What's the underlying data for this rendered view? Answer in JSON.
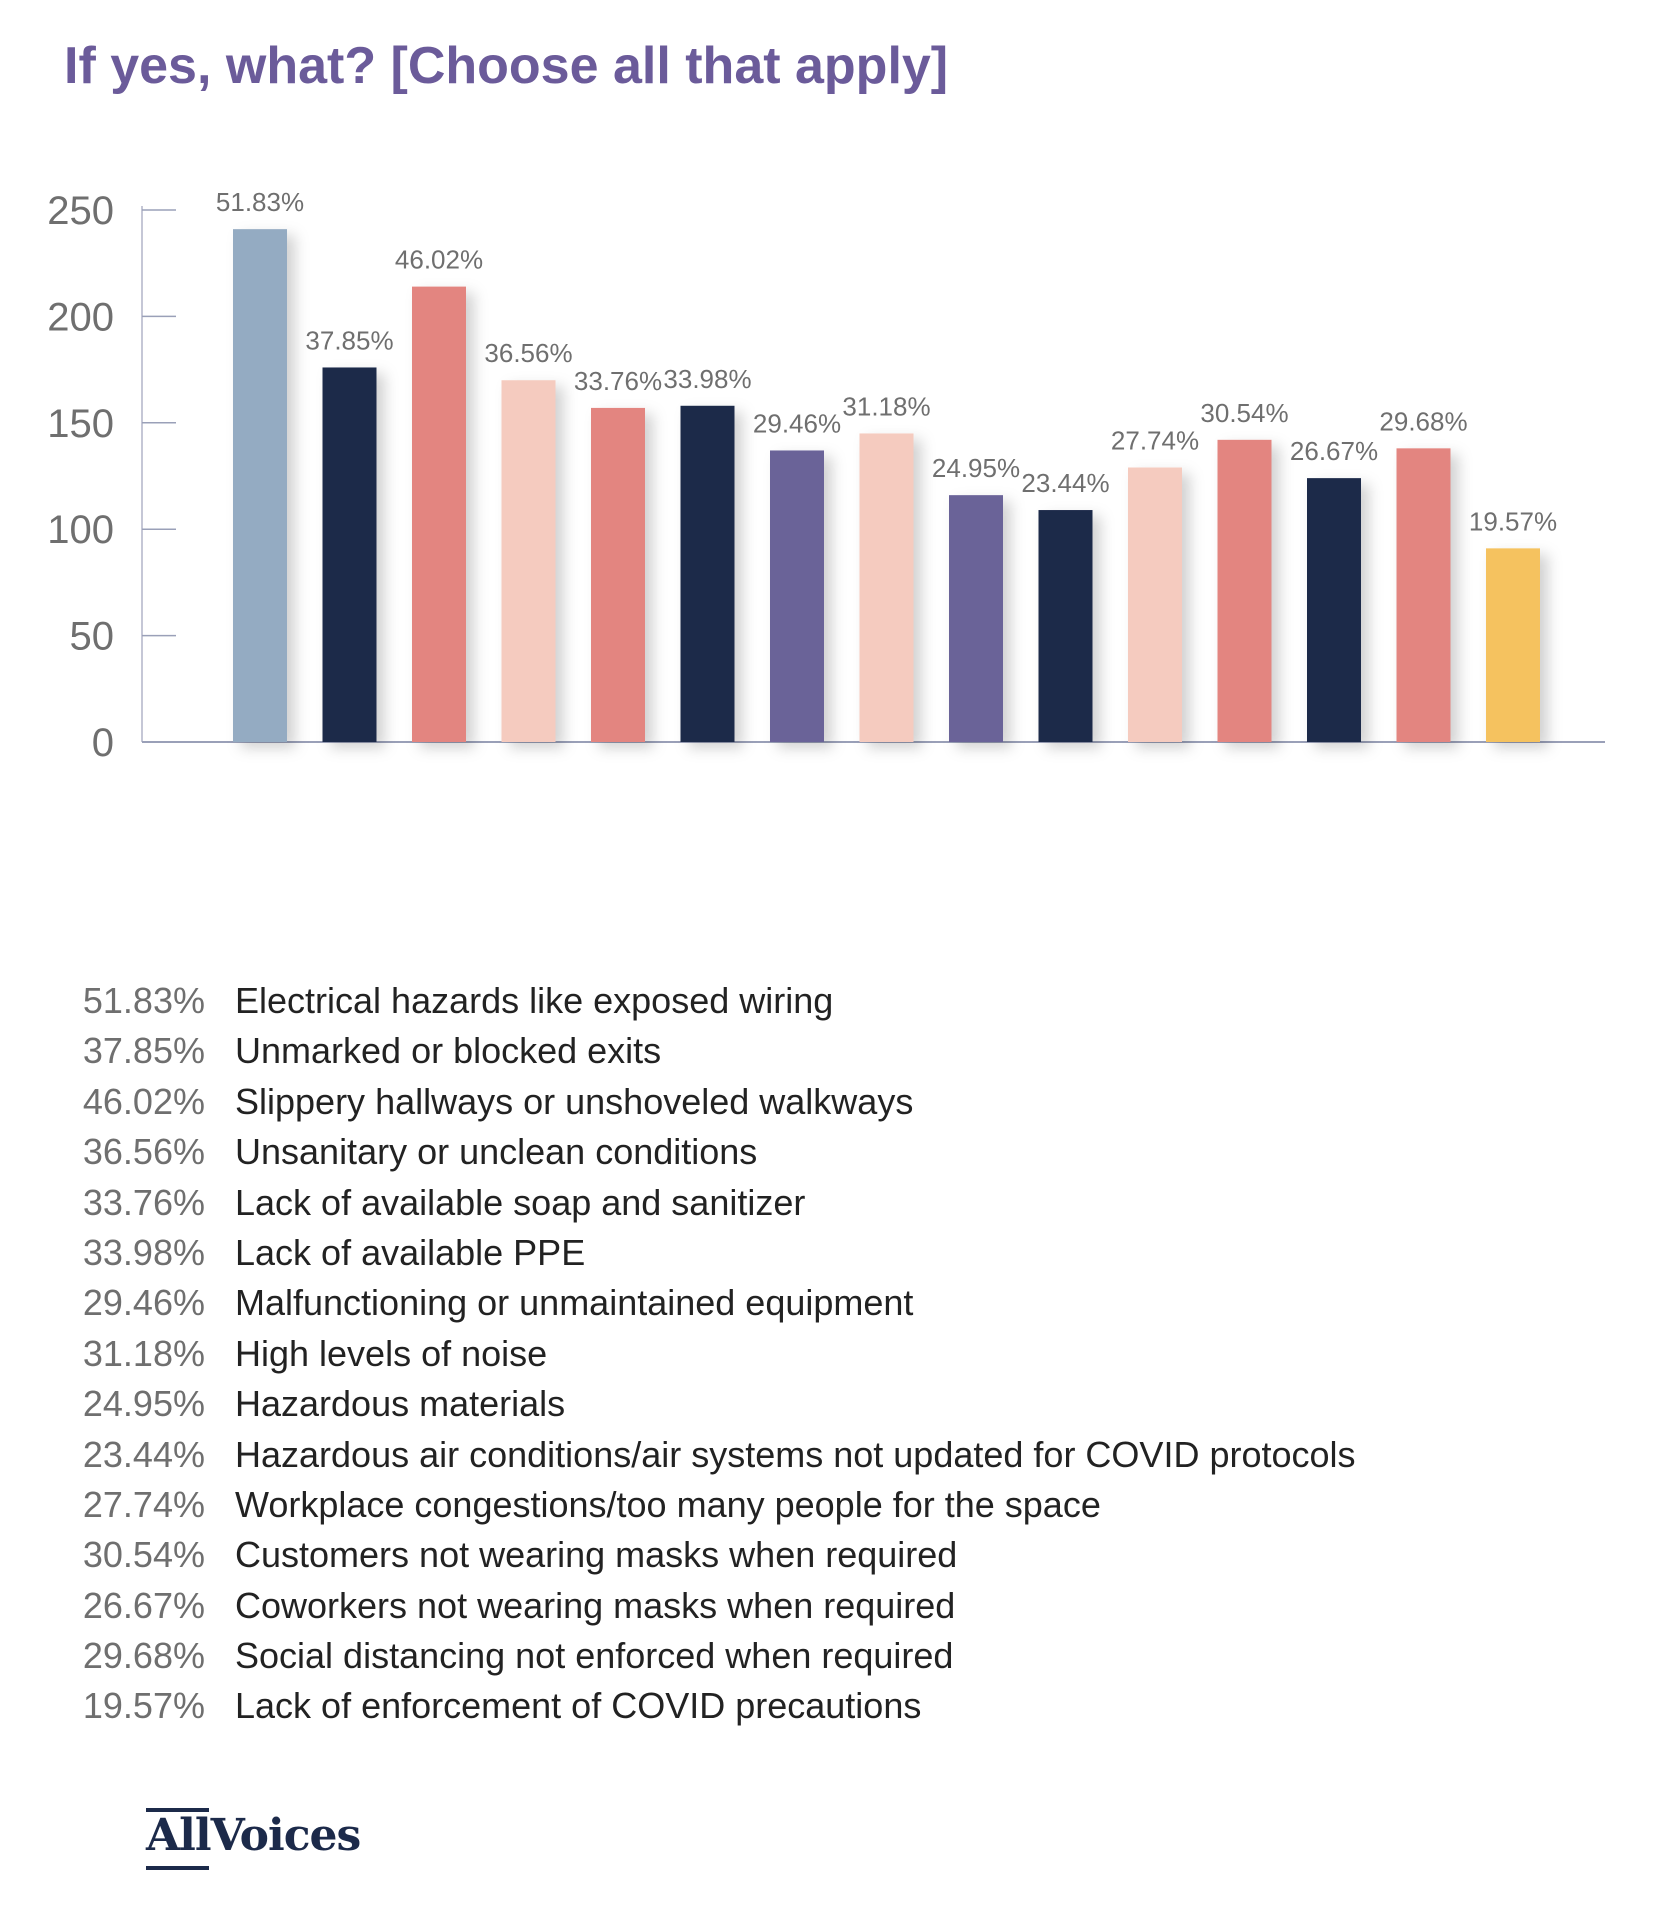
{
  "title": "If yes, what? [Choose all that apply]",
  "chart_data": {
    "type": "bar",
    "title": "If yes, what? [Choose all that apply]",
    "ylim": [
      0,
      250
    ],
    "yticks": [
      "0",
      "50",
      "100",
      "150",
      "200",
      "250"
    ],
    "grid": false,
    "categories": [
      "Electrical hazards like exposed wiring",
      "Unmarked or blocked exits",
      "Slippery hallways or unshoveled walkways",
      "Unsanitary or unclean conditions",
      "Lack of available soap and sanitizer",
      "Lack of available PPE",
      "Malfunctioning or unmaintained equipment",
      "High levels of noise",
      "Hazardous materials",
      "Hazardous air conditions/air systems not updated for COVID protocols",
      "Workplace congestions/too many people for the space",
      "Customers not wearing masks when required",
      "Coworkers not wearing masks when required",
      "Social distancing not enforced when required",
      "Lack of enforcement of COVID precautions"
    ],
    "values": [
      241,
      176,
      214,
      170,
      157,
      158,
      137,
      145,
      116,
      109,
      129,
      142,
      124,
      138,
      91
    ],
    "data_labels": [
      "51.83%",
      "37.85%",
      "46.02%",
      "36.56%",
      "33.76%",
      "33.98%",
      "29.46%",
      "31.18%",
      "24.95%",
      "23.44%",
      "27.74%",
      "30.54%",
      "26.67%",
      "29.68%",
      "19.57%"
    ],
    "colors": [
      "#94abc2",
      "#1c2a4a",
      "#e38580",
      "#f5cbbf",
      "#e38580",
      "#1c2a4a",
      "#6b6498",
      "#f5cbbf",
      "#6b6498",
      "#1c2a4a",
      "#f5cbbf",
      "#e38580",
      "#1c2a4a",
      "#e38580",
      "#f5c25e"
    ],
    "legend_placement": "bottom"
  },
  "logo": {
    "text": "AllVoices",
    "color": "#1c2a4a"
  }
}
